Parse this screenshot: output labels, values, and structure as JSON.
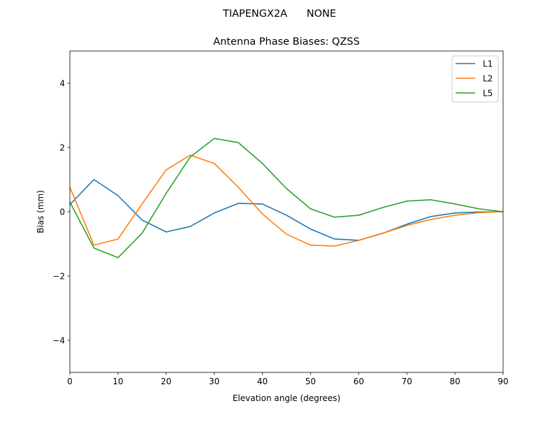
{
  "suptitle": "TIAPENGX2A      NONE",
  "chart_data": {
    "type": "line",
    "title": "Antenna Phase Biases: QZSS",
    "xlabel": "Elevation angle (degrees)",
    "ylabel": "Bias (mm)",
    "xlim": [
      0,
      90
    ],
    "ylim": [
      -5,
      5
    ],
    "xticks": [
      0,
      10,
      20,
      30,
      40,
      50,
      60,
      70,
      80,
      90
    ],
    "yticks": [
      -4,
      -2,
      0,
      2,
      4
    ],
    "ytick_labels": [
      "−4",
      "−2",
      "0",
      "2",
      "4"
    ],
    "grid": false,
    "legend_position": "top-right",
    "x": [
      0,
      5,
      10,
      15,
      20,
      25,
      30,
      35,
      40,
      45,
      50,
      55,
      60,
      65,
      70,
      75,
      80,
      85,
      90
    ],
    "series": [
      {
        "name": "L1",
        "color": "#1f77b4",
        "values": [
          0.22,
          1.0,
          0.5,
          -0.26,
          -0.63,
          -0.46,
          -0.04,
          0.26,
          0.24,
          -0.11,
          -0.54,
          -0.85,
          -0.89,
          -0.67,
          -0.39,
          -0.15,
          -0.04,
          -0.01,
          0
        ]
      },
      {
        "name": "L2",
        "color": "#ff7f0e",
        "values": [
          0.76,
          -1.04,
          -0.85,
          0.24,
          1.3,
          1.76,
          1.5,
          0.76,
          -0.07,
          -0.7,
          -1.04,
          -1.07,
          -0.89,
          -0.67,
          -0.43,
          -0.24,
          -0.11,
          -0.03,
          0
        ]
      },
      {
        "name": "L5",
        "color": "#2ca02c",
        "values": [
          0.3,
          -1.13,
          -1.43,
          -0.67,
          0.57,
          1.7,
          2.28,
          2.15,
          1.5,
          0.72,
          0.09,
          -0.17,
          -0.11,
          0.13,
          0.33,
          0.37,
          0.24,
          0.09,
          0
        ]
      }
    ]
  }
}
